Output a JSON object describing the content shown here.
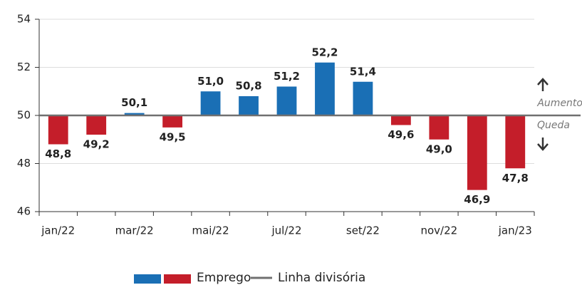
{
  "chart_data": {
    "type": "bar",
    "categories": [
      "jan/22",
      null,
      "mar/22",
      null,
      "mai/22",
      null,
      "jul/22",
      null,
      "set/22",
      null,
      "nov/22",
      null,
      "jan/23"
    ],
    "series": [
      {
        "name": "Emprego",
        "colors": [
          "#1a6fb5",
          "#c41e2a"
        ],
        "values": [
          48.8,
          49.2,
          50.1,
          49.5,
          51.0,
          50.8,
          51.2,
          52.2,
          51.4,
          49.6,
          49.0,
          46.9,
          47.8
        ],
        "value_labels": [
          "48,8",
          "49,2",
          "50,1",
          "49,5",
          "51,0",
          "50,8",
          "51,2",
          "52,2",
          "51,4",
          "49,6",
          "49,0",
          "46,9",
          "47,8"
        ]
      }
    ],
    "baseline": {
      "name": "Linha divisória",
      "value": 50,
      "color": "#707070"
    },
    "annotations": [
      "Aumento",
      "Queda"
    ],
    "ylim": [
      46,
      54
    ],
    "yticks": [
      46,
      48,
      50,
      52,
      54
    ],
    "grid": true
  }
}
